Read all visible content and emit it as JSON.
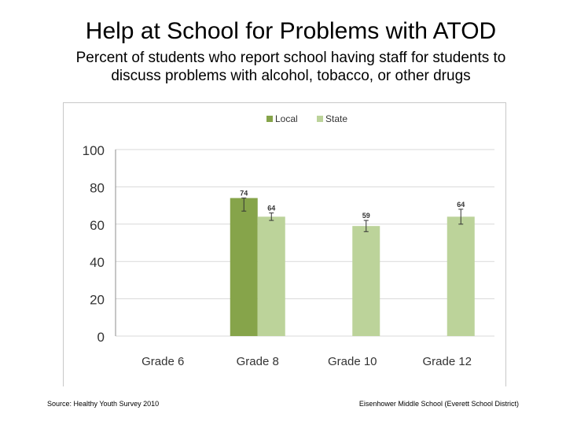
{
  "header": {
    "title": "Help at School for Problems with ATOD",
    "subtitle_line1": "Percent of students who report school having staff for students to",
    "subtitle_line2": "discuss problems with alcohol, tobacco, or other drugs"
  },
  "footer": {
    "source": "Source: Healthy Youth Survey 2010",
    "school": "Eisenhower Middle School (Everett School District)"
  },
  "chart_data": {
    "type": "bar",
    "categories": [
      "Grade 6",
      "Grade 8",
      "Grade 10",
      "Grade 12"
    ],
    "series": [
      {
        "name": "Local",
        "color": "#86a44a",
        "values": [
          null,
          74,
          null,
          null
        ],
        "labels": [
          null,
          "74",
          null,
          null
        ],
        "errors": [
          null,
          [
            67,
            74
          ],
          null,
          null
        ]
      },
      {
        "name": "State",
        "color": "#bcd39a",
        "values": [
          null,
          64,
          59,
          64
        ],
        "labels": [
          null,
          "64",
          "59",
          "64"
        ],
        "errors": [
          null,
          [
            62,
            66
          ],
          [
            56,
            62
          ],
          [
            60,
            68
          ]
        ]
      }
    ],
    "ylim": [
      0,
      100
    ],
    "yticks": [
      0,
      20,
      40,
      60,
      80,
      100
    ],
    "grid": true,
    "legend_position": "top-center",
    "error_bars": true
  }
}
